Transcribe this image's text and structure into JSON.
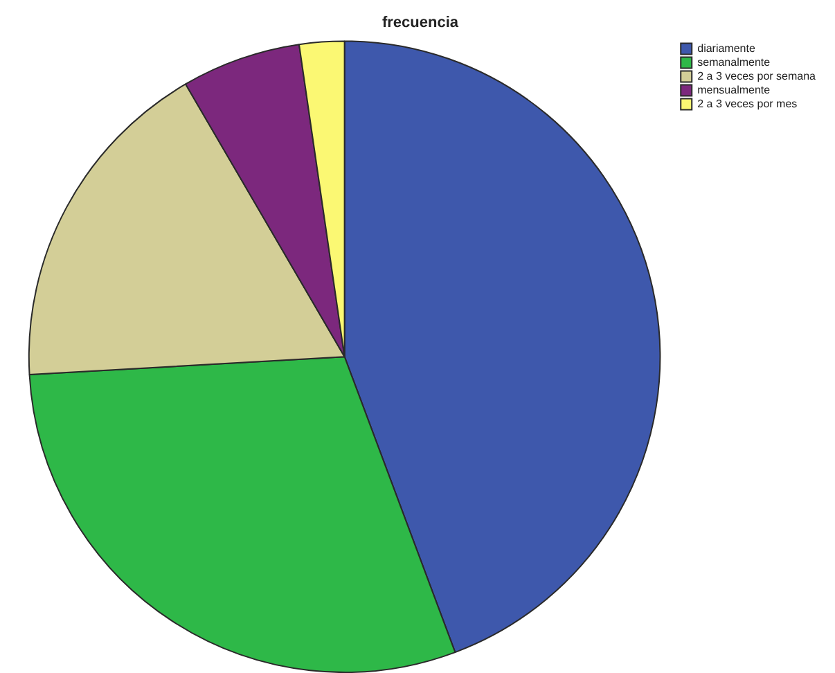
{
  "chart_data": {
    "type": "pie",
    "title": "frecuencia",
    "categories": [
      "diariamente",
      "semanalmente",
      "2 a 3 veces por semana",
      "mensualmente",
      "2 a 3 veces por mes"
    ],
    "values": [
      44.3,
      29.8,
      17.5,
      6.1,
      2.3
    ],
    "colors": [
      "#3e58ac",
      "#2eb848",
      "#d3ce97",
      "#7c287d",
      "#fbf873"
    ],
    "legend": "top right"
  }
}
